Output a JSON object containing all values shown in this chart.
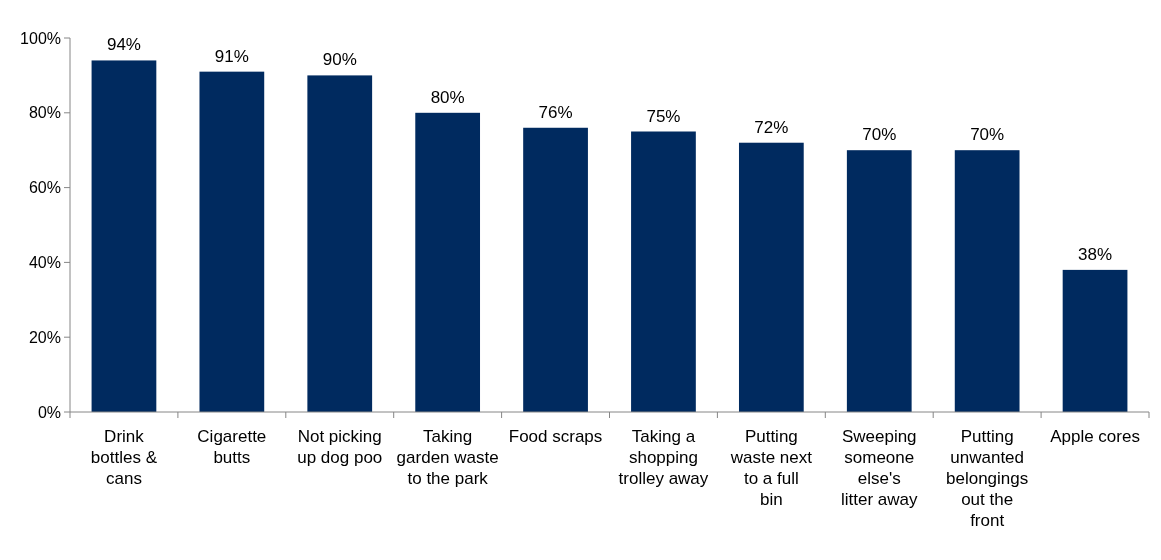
{
  "chart_data": {
    "type": "bar",
    "categories": [
      "Drink bottles & cans",
      "Cigarette butts",
      "Not picking up dog poo",
      "Taking garden waste to the park",
      "Food scraps",
      "Taking a shopping trolley away",
      "Putting waste next to a full bin",
      "Sweeping someone else's litter away",
      "Putting unwanted belongings out the front",
      "Apple cores"
    ],
    "values": [
      94,
      91,
      90,
      80,
      76,
      75,
      72,
      70,
      70,
      38
    ],
    "value_labels": [
      "94%",
      "91%",
      "90%",
      "80%",
      "76%",
      "75%",
      "72%",
      "70%",
      "70%",
      "38%"
    ],
    "color": "#002a5f",
    "ylim": [
      0,
      100
    ],
    "yticks": [
      {
        "value": 0,
        "label": "0%"
      },
      {
        "value": 20,
        "label": "20%"
      },
      {
        "value": 40,
        "label": "40%"
      },
      {
        "value": 60,
        "label": "60%"
      },
      {
        "value": 80,
        "label": "80%"
      },
      {
        "value": 100,
        "label": "100%"
      }
    ],
    "grid": false
  }
}
